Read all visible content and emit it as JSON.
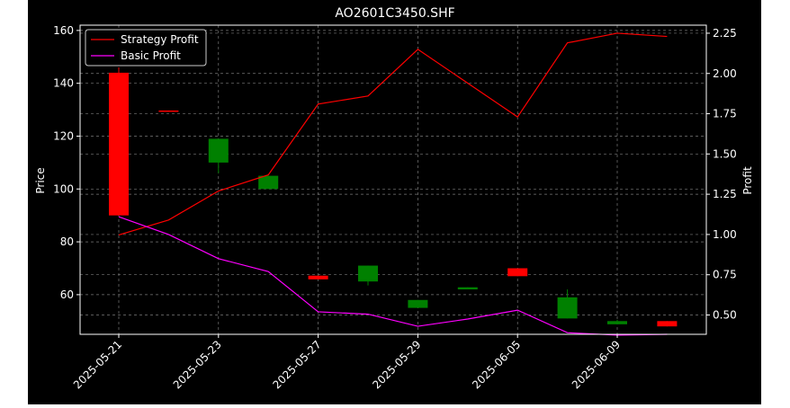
{
  "chart_data": {
    "type": "candlestick-line",
    "title": "AO2601C3450.SHF",
    "ylabel_left": "Price",
    "ylabel_right": "Profit",
    "ylim_left": [
      45,
      162
    ],
    "ylim_right": [
      0.38,
      2.3
    ],
    "yticks_left": [
      60,
      80,
      100,
      120,
      140,
      160
    ],
    "yticks_right": [
      "0.50",
      "0.75",
      "1.00",
      "1.25",
      "1.50",
      "1.75",
      "2.00",
      "2.25"
    ],
    "xticks": [
      "2025-05-21",
      "2025-05-23",
      "2025-05-27",
      "2025-05-29",
      "2025-06-05",
      "2025-06-09"
    ],
    "xtick_index": [
      0,
      2,
      4,
      6,
      8,
      10
    ],
    "grid": true,
    "legend_position": "top-left",
    "colors": {
      "background": "#000000",
      "up": "#008000",
      "down": "#ff0000",
      "strategy": "#ff0000",
      "basic": "#ff00ff",
      "axis": "#ffffff"
    },
    "candles": [
      {
        "date": "2025-05-21",
        "open": 144,
        "close": 90,
        "high": 146,
        "low": 90
      },
      {
        "date": "2025-05-22",
        "open": 129.7,
        "close": 129.3,
        "high": 129.7,
        "low": 129.3
      },
      {
        "date": "2025-05-23",
        "open": 110,
        "close": 119,
        "high": 119,
        "low": 106
      },
      {
        "date": "2025-05-26",
        "open": 100,
        "close": 105,
        "high": 105,
        "low": 100
      },
      {
        "date": "2025-05-27",
        "open": 67.2,
        "close": 65.8,
        "high": 67.2,
        "low": 65.8
      },
      {
        "date": "2025-05-28",
        "open": 65,
        "close": 71,
        "high": 71,
        "low": 63.5
      },
      {
        "date": "2025-05-29",
        "open": 55,
        "close": 58,
        "high": 58,
        "low": 55
      },
      {
        "date": "2025-06-04",
        "open": 62,
        "close": 62.8,
        "high": 62.8,
        "low": 62
      },
      {
        "date": "2025-06-05",
        "open": 70,
        "close": 67,
        "high": 70,
        "low": 67
      },
      {
        "date": "2025-06-06",
        "open": 51,
        "close": 59,
        "high": 62,
        "low": 51
      },
      {
        "date": "2025-06-09",
        "open": 48.8,
        "close": 50,
        "high": 50.5,
        "low": 48.8
      },
      {
        "date": "2025-06-10",
        "open": 50,
        "close": 48,
        "high": 50,
        "low": 48
      }
    ],
    "series": [
      {
        "name": "Strategy Profit",
        "values": [
          0.997,
          1.09,
          1.27,
          1.37,
          1.81,
          1.86,
          2.15,
          1.94,
          1.73,
          2.19,
          2.25,
          2.23
        ]
      },
      {
        "name": "Basic Profit",
        "values": [
          1.11,
          1.0,
          0.85,
          0.77,
          0.52,
          0.505,
          0.43,
          0.475,
          0.53,
          0.39,
          0.375,
          0.38
        ]
      }
    ]
  }
}
